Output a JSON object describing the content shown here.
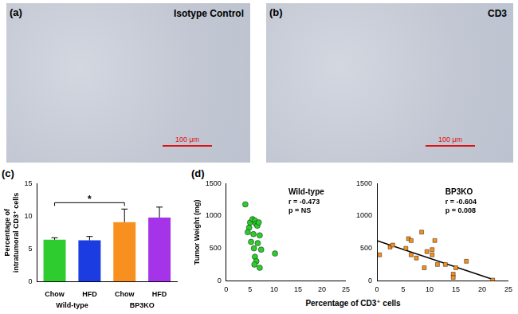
{
  "images": [
    {
      "panel": "(a)",
      "label": "Isotype Control",
      "scale_bar": "100 μm"
    },
    {
      "panel": "(b)",
      "label": "CD3",
      "scale_bar": "100 μm"
    }
  ],
  "chart_data": [
    {
      "type": "bar",
      "panel": "(c)",
      "ylabel": "Percentage of intratumoral CD3⁺ cells",
      "categories": [
        "Chow",
        "HFD",
        "Chow",
        "HFD"
      ],
      "groups": [
        "Wild-type",
        "Wild-type",
        "BP3KO",
        "BP3KO"
      ],
      "values": [
        6.4,
        6.3,
        9.1,
        9.8
      ],
      "errors": [
        0.3,
        0.6,
        2.0,
        1.6
      ],
      "colors": [
        "#2ecc2e",
        "#1a3ce0",
        "#f7901e",
        "#a533e8"
      ],
      "ylim": [
        0,
        15
      ],
      "yticks": [
        0,
        5,
        10,
        15
      ],
      "grid": false,
      "annotations": [
        {
          "text": "*",
          "between": [
            0,
            2
          ]
        }
      ]
    },
    {
      "type": "scatter",
      "panel": "(d)",
      "title": "Wild-type",
      "annotations": [
        "r = -0.473",
        "p = NS"
      ],
      "xlabel": "Percentage of CD3⁺ cells",
      "ylabel": "Tumor Weight (mg)",
      "x": [
        4.0,
        4.8,
        5.0,
        5.2,
        5.5,
        5.7,
        6.0,
        6.2,
        6.5,
        6.8,
        5.8,
        6.0,
        6.3,
        5.9,
        7.0,
        7.3,
        7.0,
        10.2,
        4.5,
        6.6
      ],
      "values": [
        1180,
        820,
        900,
        600,
        950,
        720,
        930,
        880,
        850,
        900,
        500,
        370,
        300,
        250,
        700,
        480,
        200,
        420,
        750,
        580
      ],
      "color": "#2ecc2e",
      "marker": "circle",
      "xlim": [
        0,
        25
      ],
      "xticks": [
        0,
        5,
        10,
        15,
        20,
        25
      ],
      "ylim": [
        0,
        1500
      ],
      "yticks": [
        0,
        500,
        1000,
        1500
      ],
      "grid": false
    },
    {
      "type": "scatter",
      "title": "BP3KO",
      "annotations": [
        "r = -0.604",
        "p = 0.008"
      ],
      "x": [
        0.5,
        2.5,
        3.0,
        5.5,
        6.0,
        6.5,
        6.5,
        7.5,
        8.5,
        9.0,
        9.5,
        10.5,
        10.5,
        11.0,
        11.5,
        13.0,
        14.5,
        14.5,
        15.0,
        17.0,
        22.0
      ],
      "values": [
        400,
        520,
        550,
        500,
        650,
        620,
        400,
        350,
        750,
        200,
        450,
        480,
        400,
        620,
        250,
        250,
        100,
        50,
        200,
        300,
        10
      ],
      "color": "#f7901e",
      "marker": "square",
      "fit_line": {
        "x": [
          0,
          22
        ],
        "values": [
          620,
          20
        ],
        "color": "#000000"
      },
      "xlim": [
        0,
        25
      ],
      "xticks": [
        0,
        5,
        10,
        15,
        20,
        25
      ],
      "ylim": [
        0,
        1500
      ],
      "yticks": [
        0,
        500,
        1000,
        1500
      ],
      "grid": false
    }
  ]
}
